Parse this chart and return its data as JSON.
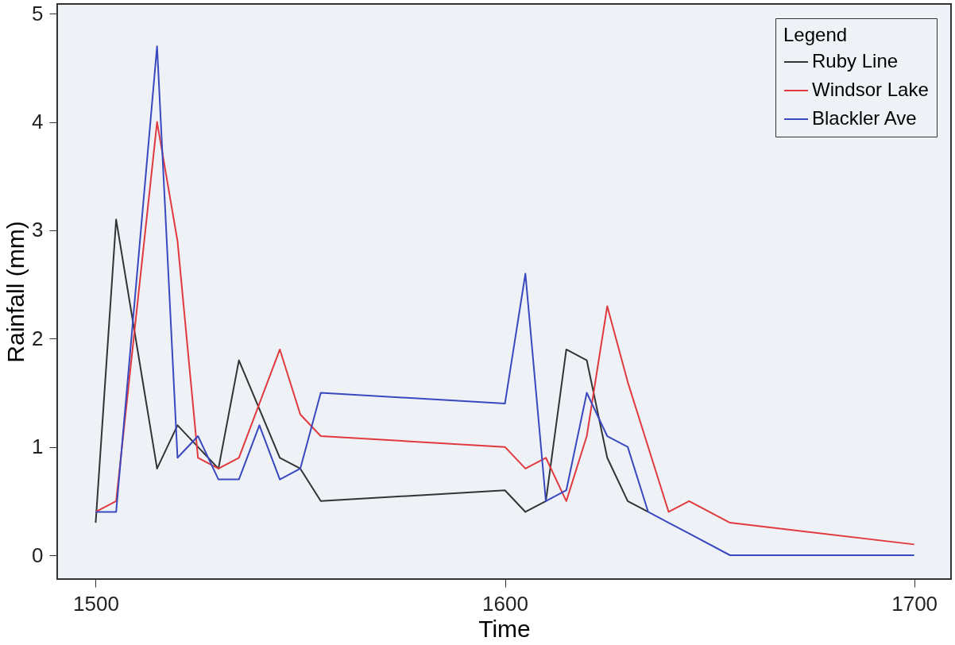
{
  "chart_data": {
    "type": "line",
    "xlabel": "Time",
    "ylabel": "Rainfall (mm)",
    "legend_title": "Legend",
    "legend": "top right",
    "grid": false,
    "marker": "none",
    "line_style": "solid",
    "xlim": [
      1490.6,
      1709
    ],
    "ylim": [
      -0.22,
      5.09
    ],
    "xticks": [
      1500,
      1600,
      1700
    ],
    "yticks": [
      0,
      1,
      2,
      3,
      4,
      5
    ],
    "series": [
      {
        "name": "Ruby Line",
        "color": "#333333",
        "x": [
          1500,
          1505,
          1515,
          1520,
          1530,
          1535,
          1545,
          1550,
          1555,
          1600,
          1605,
          1610,
          1615,
          1620,
          1625,
          1630,
          1635
        ],
        "values": [
          0.3,
          3.1,
          0.8,
          1.2,
          0.8,
          1.8,
          0.9,
          0.8,
          0.5,
          0.6,
          0.4,
          0.5,
          1.9,
          1.8,
          0.9,
          0.5,
          0.4
        ]
      },
      {
        "name": "Windsor Lake",
        "color": "#e03a3e",
        "x": [
          1500,
          1505,
          1515,
          1520,
          1525,
          1530,
          1535,
          1545,
          1550,
          1555,
          1600,
          1605,
          1610,
          1615,
          1620,
          1625,
          1630,
          1640,
          1645,
          1655,
          1700
        ],
        "values": [
          0.4,
          0.5,
          4.0,
          2.9,
          0.9,
          0.8,
          0.9,
          1.9,
          1.3,
          1.1,
          1.0,
          0.8,
          0.9,
          0.5,
          1.1,
          2.3,
          1.6,
          0.4,
          0.5,
          0.3,
          0.1
        ]
      },
      {
        "name": "Blackler Ave",
        "color": "#3a48c0",
        "x": [
          1500,
          1505,
          1515,
          1520,
          1525,
          1530,
          1535,
          1540,
          1545,
          1550,
          1555,
          1600,
          1605,
          1610,
          1615,
          1620,
          1625,
          1630,
          1635,
          1640,
          1645,
          1655,
          1700
        ],
        "values": [
          0.4,
          0.4,
          4.7,
          0.9,
          1.1,
          0.7,
          0.7,
          1.2,
          0.7,
          0.8,
          1.5,
          1.4,
          2.6,
          0.5,
          0.6,
          1.5,
          1.1,
          1.0,
          0.4,
          0.3,
          0.2,
          0.0,
          0.0
        ]
      }
    ]
  }
}
